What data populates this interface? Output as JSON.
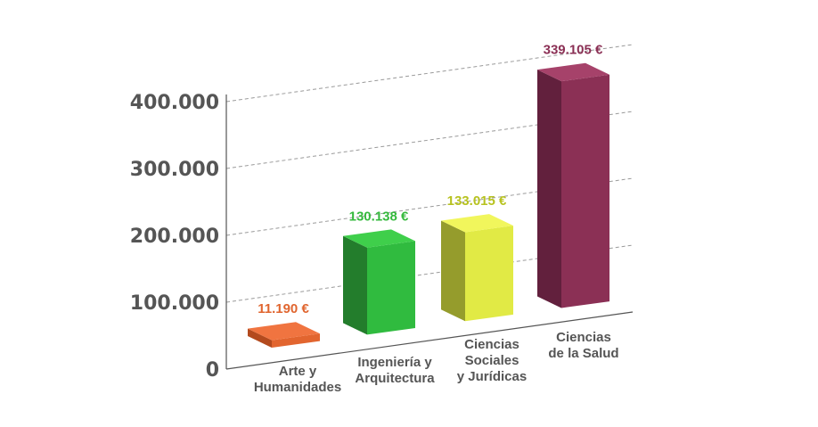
{
  "chart_data": {
    "type": "bar",
    "categories": [
      [
        "Arte y",
        "Humanidades"
      ],
      [
        "Ingeniería y",
        "Arquitectura"
      ],
      [
        "Ciencias",
        "Sociales",
        "y Jurídicas"
      ],
      [
        "Ciencias",
        "de la Salud"
      ]
    ],
    "values": [
      11190,
      130138,
      133015,
      339105
    ],
    "value_labels": [
      "11.190 €",
      "130.138 €",
      "133.015 €",
      "339.105 €"
    ],
    "y_ticks": [
      "0",
      "100.000",
      "200.000",
      "300.000",
      "400.000"
    ],
    "ylim": [
      0,
      400000
    ],
    "grid": true,
    "style": "3d",
    "colors": {
      "front": [
        "#e2652f",
        "#30bb3f",
        "#e1ea45",
        "#8b3055"
      ],
      "side": [
        "#b34a1e",
        "#237d2c",
        "#959c2c",
        "#62203d"
      ],
      "top": [
        "#f07440",
        "#3fcf4b",
        "#f1f65c",
        "#a6426a"
      ],
      "label": [
        "#e0652f",
        "#35b93d",
        "#b7c21f",
        "#8b3055"
      ]
    }
  }
}
